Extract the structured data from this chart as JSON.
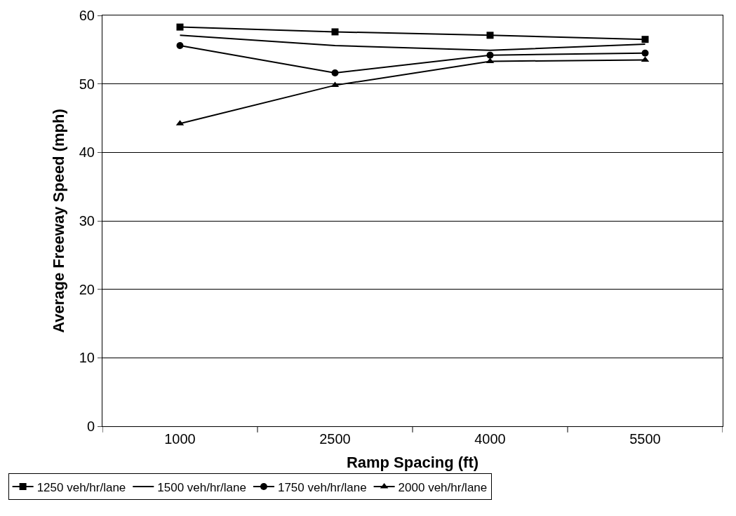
{
  "chart_data": {
    "type": "line",
    "xlabel": "Ramp Spacing (ft)",
    "ylabel": "Average Freeway Speed (mph)",
    "categories": [
      "1000",
      "2500",
      "4000",
      "5500"
    ],
    "ylim": [
      0,
      60
    ],
    "yticks": [
      0,
      10,
      20,
      30,
      40,
      50,
      60
    ],
    "grid": "y",
    "legend": "bottom",
    "series": [
      {
        "name": "1250 veh/hr/lane",
        "color": "#000000",
        "marker": "square",
        "values": [
          58.3,
          57.6,
          57.1,
          56.5
        ]
      },
      {
        "name": "1500 veh/hr/lane",
        "color": "#000000",
        "marker": "none",
        "values": [
          57.1,
          55.6,
          54.9,
          55.8
        ]
      },
      {
        "name": "1750 veh/hr/lane",
        "color": "#000000",
        "marker": "circle",
        "values": [
          55.6,
          51.6,
          54.2,
          54.5
        ]
      },
      {
        "name": "2000 veh/hr/lane",
        "color": "#000000",
        "marker": "triangle",
        "values": [
          44.2,
          49.8,
          53.3,
          53.5
        ]
      }
    ]
  }
}
